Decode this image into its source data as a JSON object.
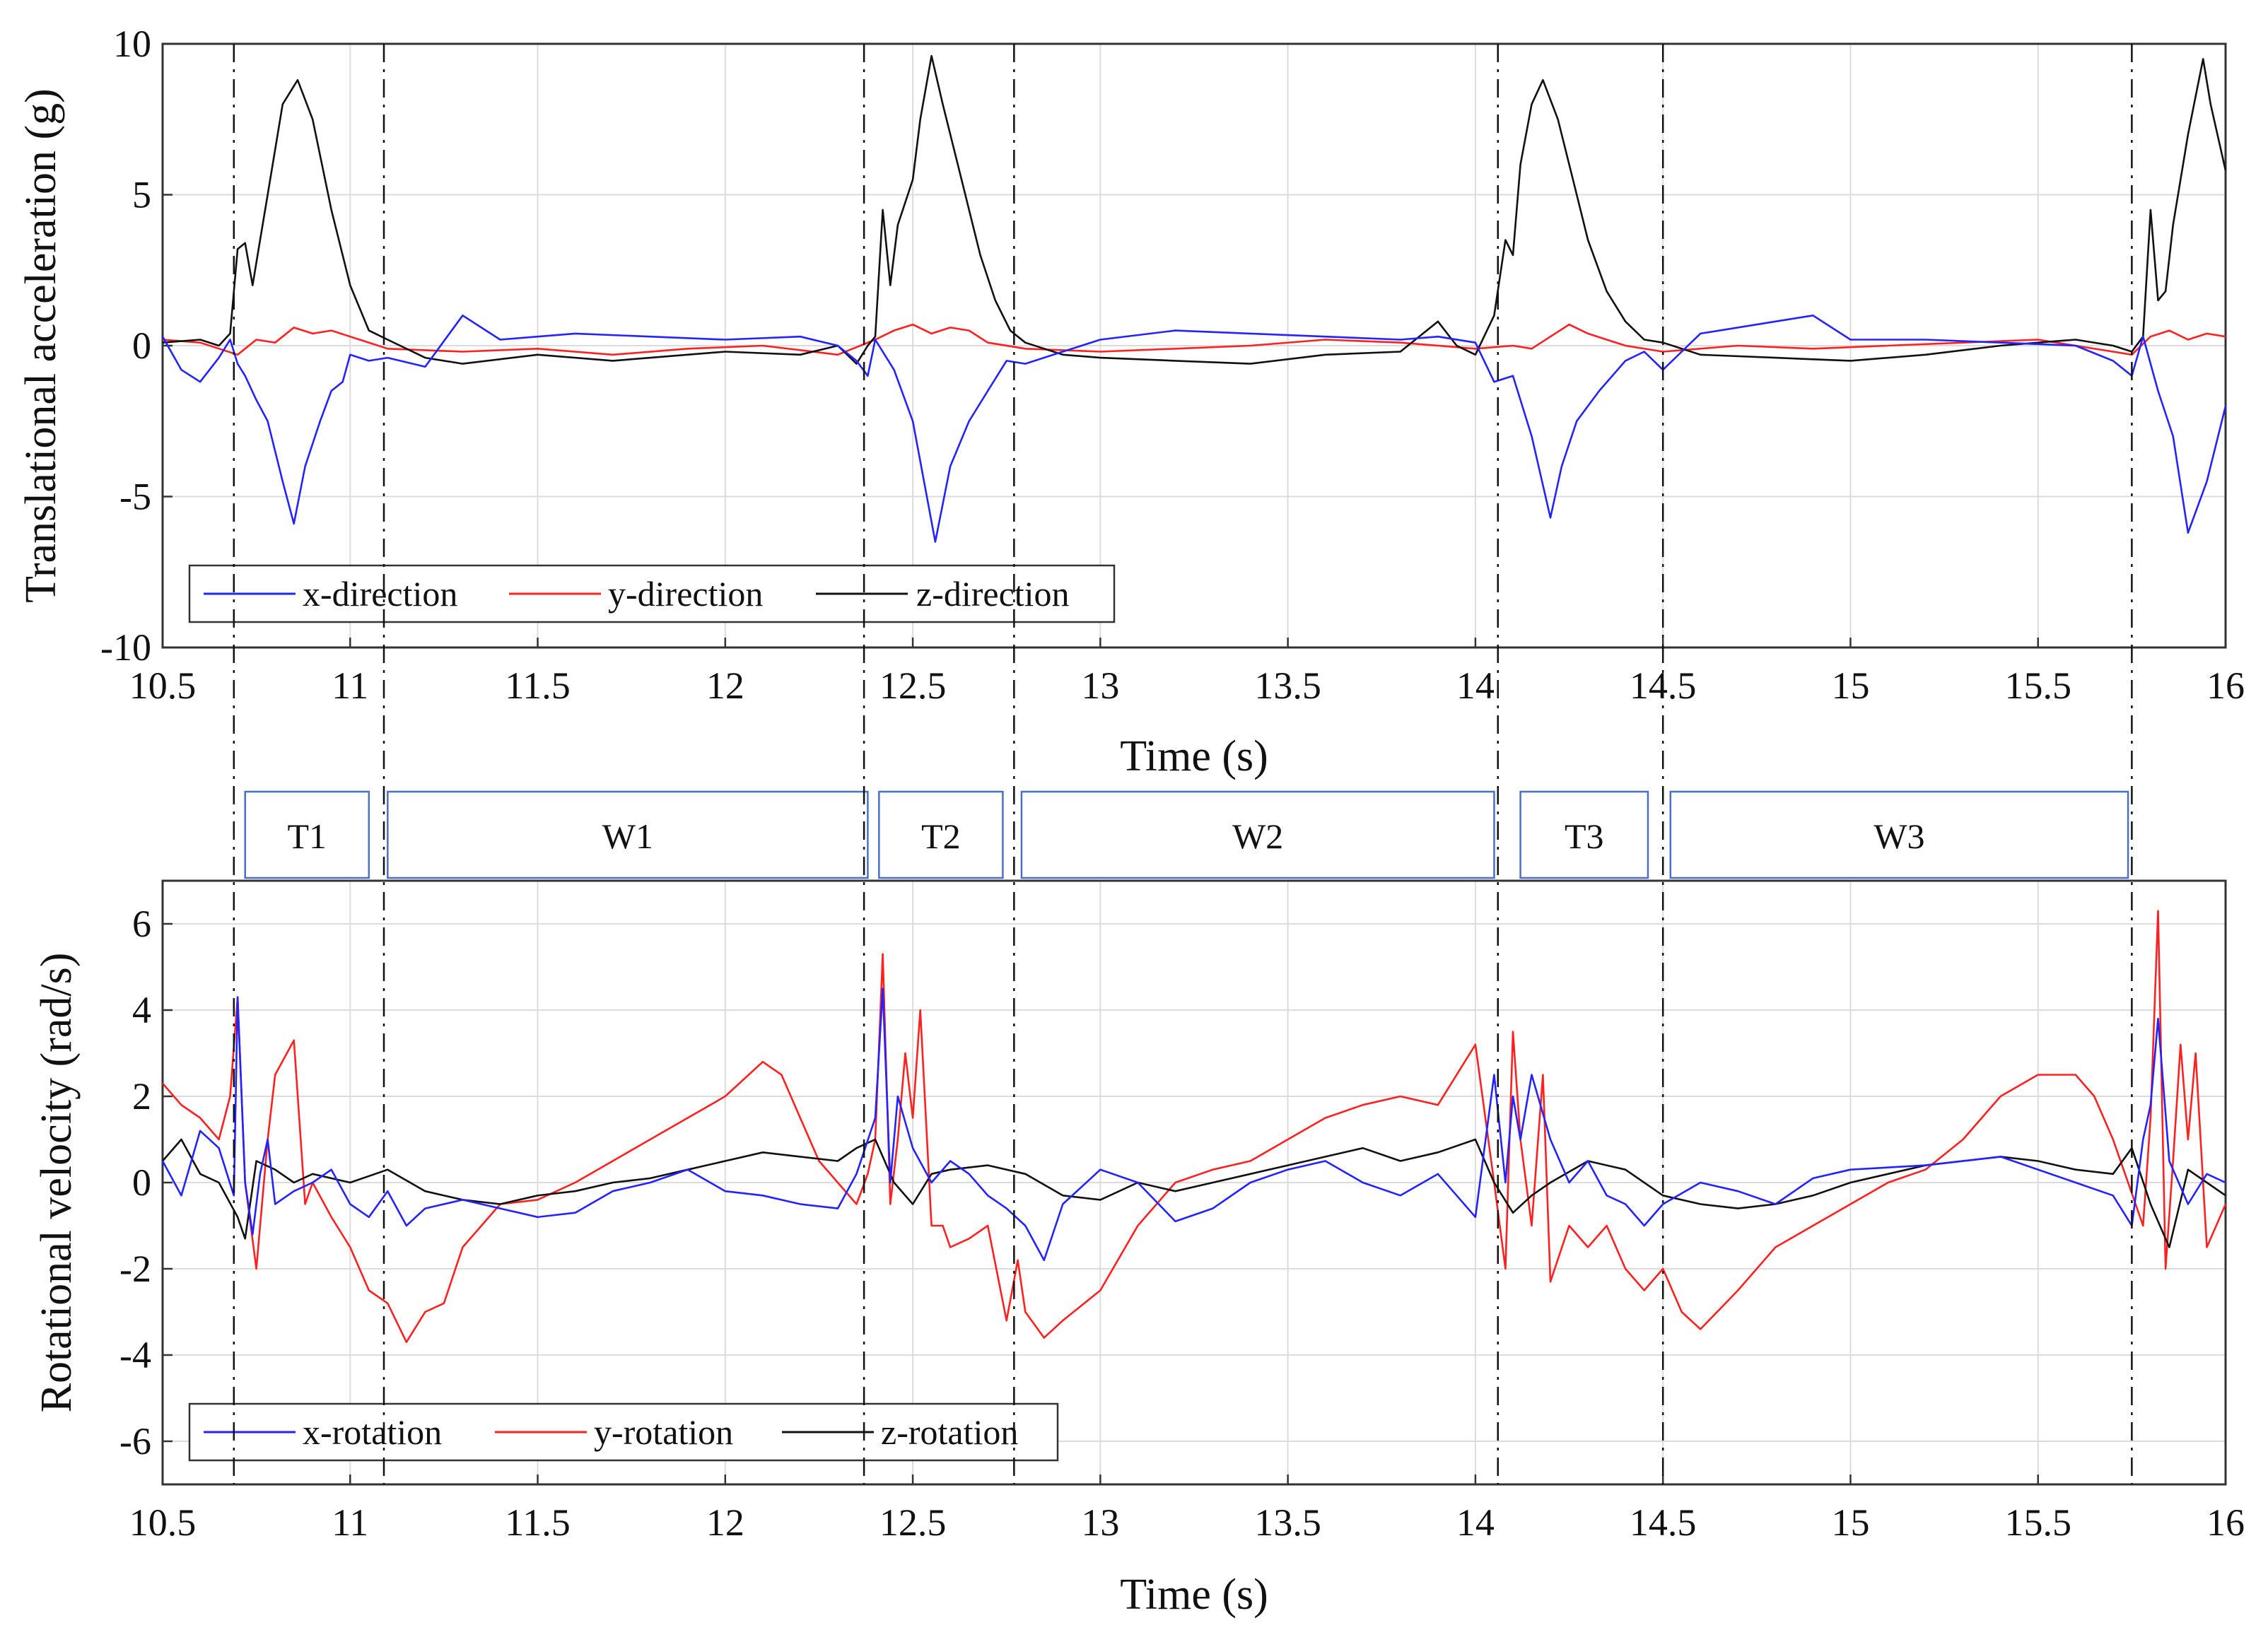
{
  "chart_data": [
    {
      "type": "line",
      "id": "top",
      "xlabel": "Time (s)",
      "ylabel": "Translational acceleration (g)",
      "xlim": [
        10.5,
        16
      ],
      "ylim": [
        -10,
        10
      ],
      "xticks": [
        "10.5",
        "11",
        "11.5",
        "12",
        "12.5",
        "13",
        "13.5",
        "14",
        "14.5",
        "15",
        "15.5",
        "16"
      ],
      "yticks": [
        "-10",
        "-5",
        "0",
        "5",
        "10"
      ],
      "grid": true,
      "legend_position": "bottom-left",
      "series": [
        {
          "name": "x-direction",
          "color": "#2323ff",
          "x": [
            10.5,
            10.55,
            10.6,
            10.65,
            10.68,
            10.7,
            10.72,
            10.75,
            10.78,
            10.82,
            10.85,
            10.88,
            10.92,
            10.95,
            10.98,
            11.0,
            11.05,
            11.1,
            11.2,
            11.3,
            11.4,
            11.5,
            11.6,
            11.8,
            12.0,
            12.2,
            12.3,
            12.35,
            12.38,
            12.4,
            12.45,
            12.5,
            12.53,
            12.56,
            12.6,
            12.65,
            12.7,
            12.75,
            12.8,
            12.9,
            13.0,
            13.2,
            13.4,
            13.6,
            13.8,
            13.9,
            14.0,
            14.05,
            14.1,
            14.15,
            14.2,
            14.23,
            14.27,
            14.33,
            14.4,
            14.45,
            14.5,
            14.55,
            14.6,
            14.8,
            14.9,
            15.0,
            15.2,
            15.4,
            15.6,
            15.7,
            15.75,
            15.78,
            15.82,
            15.86,
            15.9,
            15.95,
            16.0
          ],
          "values": [
            0.3,
            -0.8,
            -1.2,
            -0.4,
            0.2,
            -0.6,
            -1.0,
            -1.8,
            -2.5,
            -4.5,
            -5.9,
            -4.0,
            -2.5,
            -1.5,
            -1.2,
            -0.3,
            -0.5,
            -0.4,
            -0.7,
            1.0,
            0.2,
            0.3,
            0.4,
            0.3,
            0.2,
            0.3,
            0.0,
            -0.5,
            -1.0,
            0.2,
            -0.8,
            -2.5,
            -4.5,
            -6.5,
            -4.0,
            -2.5,
            -1.5,
            -0.5,
            -0.6,
            -0.2,
            0.2,
            0.5,
            0.4,
            0.3,
            0.2,
            0.3,
            0.1,
            -1.2,
            -1.0,
            -3.0,
            -5.7,
            -4.0,
            -2.5,
            -1.5,
            -0.5,
            -0.2,
            -0.8,
            -0.2,
            0.4,
            0.8,
            1.0,
            0.2,
            0.2,
            0.1,
            0.0,
            -0.5,
            -1.0,
            0.3,
            -1.5,
            -3.0,
            -6.2,
            -4.5,
            -2.0
          ]
        },
        {
          "name": "y-direction",
          "color": "#ff2020",
          "x": [
            10.5,
            10.6,
            10.7,
            10.75,
            10.8,
            10.85,
            10.9,
            10.95,
            11.0,
            11.1,
            11.3,
            11.5,
            11.7,
            11.9,
            12.1,
            12.3,
            12.4,
            12.45,
            12.5,
            12.55,
            12.6,
            12.65,
            12.7,
            12.8,
            13.0,
            13.2,
            13.4,
            13.6,
            13.8,
            14.0,
            14.1,
            14.15,
            14.2,
            14.25,
            14.3,
            14.35,
            14.4,
            14.5,
            14.7,
            14.9,
            15.1,
            15.3,
            15.5,
            15.7,
            15.75,
            15.8,
            15.85,
            15.9,
            15.95,
            16.0
          ],
          "values": [
            0.2,
            0.1,
            -0.3,
            0.2,
            0.1,
            0.6,
            0.4,
            0.5,
            0.3,
            -0.1,
            -0.2,
            -0.1,
            -0.3,
            -0.1,
            0.0,
            -0.3,
            0.2,
            0.5,
            0.7,
            0.4,
            0.6,
            0.5,
            0.1,
            -0.1,
            -0.2,
            -0.1,
            0.0,
            0.2,
            0.1,
            -0.1,
            0.0,
            -0.1,
            0.3,
            0.7,
            0.4,
            0.2,
            0.0,
            -0.2,
            0.0,
            -0.1,
            0.0,
            0.1,
            0.2,
            -0.2,
            -0.3,
            0.3,
            0.5,
            0.2,
            0.4,
            0.3
          ]
        },
        {
          "name": "z-direction",
          "color": "#111111",
          "x": [
            10.5,
            10.6,
            10.65,
            10.68,
            10.7,
            10.72,
            10.74,
            10.76,
            10.78,
            10.82,
            10.86,
            10.9,
            10.95,
            11.0,
            11.05,
            11.1,
            11.2,
            11.3,
            11.5,
            11.7,
            12.0,
            12.2,
            12.3,
            12.35,
            12.38,
            12.4,
            12.42,
            12.44,
            12.46,
            12.5,
            12.52,
            12.55,
            12.58,
            12.62,
            12.68,
            12.72,
            12.76,
            12.8,
            12.9,
            13.0,
            13.2,
            13.4,
            13.6,
            13.8,
            13.9,
            13.95,
            14.0,
            14.05,
            14.08,
            14.1,
            14.12,
            14.15,
            14.18,
            14.22,
            14.26,
            14.3,
            14.35,
            14.4,
            14.45,
            14.5,
            14.6,
            14.8,
            15.0,
            15.2,
            15.4,
            15.6,
            15.7,
            15.75,
            15.78,
            15.8,
            15.82,
            15.84,
            15.86,
            15.9,
            15.94,
            15.96,
            16.0
          ],
          "values": [
            0.1,
            0.2,
            0.0,
            0.4,
            3.2,
            3.4,
            2.0,
            3.5,
            5.0,
            8.0,
            8.8,
            7.5,
            4.5,
            2.0,
            0.5,
            0.2,
            -0.4,
            -0.6,
            -0.3,
            -0.5,
            -0.2,
            -0.3,
            0.0,
            -0.6,
            0.0,
            0.3,
            4.5,
            2.0,
            4.0,
            5.5,
            7.5,
            9.6,
            8.0,
            6.0,
            3.0,
            1.5,
            0.5,
            0.1,
            -0.3,
            -0.4,
            -0.5,
            -0.6,
            -0.3,
            -0.2,
            0.8,
            0.0,
            -0.3,
            1.0,
            3.5,
            3.0,
            6.0,
            8.0,
            8.8,
            7.5,
            5.5,
            3.5,
            1.8,
            0.8,
            0.2,
            0.1,
            -0.3,
            -0.4,
            -0.5,
            -0.3,
            0.0,
            0.2,
            0.0,
            -0.2,
            0.3,
            4.5,
            1.5,
            1.8,
            4.0,
            7.0,
            9.5,
            8.0,
            5.8
          ]
        }
      ]
    },
    {
      "type": "line",
      "id": "bottom",
      "xlabel": "Time (s)",
      "ylabel": "Rotational velocity (rad/s)",
      "xlim": [
        10.5,
        16
      ],
      "ylim": [
        -7,
        7
      ],
      "xticks": [
        "10.5",
        "11",
        "11.5",
        "12",
        "12.5",
        "13",
        "13.5",
        "14",
        "14.5",
        "15",
        "15.5",
        "16"
      ],
      "yticks": [
        "-6",
        "-4",
        "-2",
        "0",
        "2",
        "4",
        "6"
      ],
      "grid": true,
      "legend_position": "bottom-left",
      "series": [
        {
          "name": "x-rotation",
          "color": "#2323ff",
          "x": [
            10.5,
            10.55,
            10.6,
            10.65,
            10.69,
            10.7,
            10.72,
            10.74,
            10.76,
            10.78,
            10.8,
            10.85,
            10.9,
            10.95,
            11.0,
            11.05,
            11.1,
            11.15,
            11.2,
            11.3,
            11.4,
            11.5,
            11.6,
            11.7,
            11.8,
            11.9,
            12.0,
            12.1,
            12.2,
            12.3,
            12.35,
            12.4,
            12.42,
            12.44,
            12.46,
            12.5,
            12.55,
            12.6,
            12.65,
            12.7,
            12.75,
            12.8,
            12.85,
            12.9,
            13.0,
            13.1,
            13.2,
            13.3,
            13.4,
            13.5,
            13.6,
            13.7,
            13.8,
            13.9,
            14.0,
            14.05,
            14.08,
            14.1,
            14.12,
            14.15,
            14.2,
            14.25,
            14.3,
            14.35,
            14.4,
            14.45,
            14.5,
            14.6,
            14.7,
            14.8,
            14.9,
            15.0,
            15.2,
            15.4,
            15.6,
            15.7,
            15.75,
            15.78,
            15.8,
            15.82,
            15.85,
            15.9,
            15.95,
            16.0
          ],
          "values": [
            0.5,
            -0.3,
            1.2,
            0.8,
            -0.3,
            4.3,
            0.0,
            -1.2,
            0.2,
            1.0,
            -0.5,
            -0.2,
            0.0,
            0.3,
            -0.5,
            -0.8,
            -0.2,
            -1.0,
            -0.6,
            -0.4,
            -0.6,
            -0.8,
            -0.7,
            -0.2,
            0.0,
            0.3,
            -0.2,
            -0.3,
            -0.5,
            -0.6,
            0.2,
            1.5,
            4.5,
            0.0,
            2.0,
            0.8,
            0.0,
            0.5,
            0.2,
            -0.3,
            -0.6,
            -1.0,
            -1.8,
            -0.5,
            0.3,
            0.0,
            -0.9,
            -0.6,
            0.0,
            0.3,
            0.5,
            0.0,
            -0.3,
            0.2,
            -0.8,
            2.5,
            0.0,
            2.0,
            1.0,
            2.5,
            1.0,
            0.0,
            0.5,
            -0.3,
            -0.5,
            -1.0,
            -0.5,
            0.0,
            -0.2,
            -0.5,
            0.1,
            0.3,
            0.4,
            0.6,
            0.0,
            -0.3,
            -1.0,
            1.0,
            1.8,
            3.8,
            0.5,
            -0.5,
            0.2,
            0.0
          ]
        },
        {
          "name": "y-rotation",
          "color": "#ff2020",
          "x": [
            10.5,
            10.55,
            10.6,
            10.65,
            10.68,
            10.7,
            10.72,
            10.75,
            10.78,
            10.8,
            10.85,
            10.88,
            10.9,
            10.95,
            11.0,
            11.05,
            11.1,
            11.15,
            11.2,
            11.25,
            11.3,
            11.35,
            11.4,
            11.5,
            11.6,
            11.7,
            11.8,
            11.9,
            12.0,
            12.1,
            12.15,
            12.2,
            12.25,
            12.3,
            12.35,
            12.38,
            12.4,
            12.42,
            12.44,
            12.46,
            12.48,
            12.5,
            12.52,
            12.55,
            12.58,
            12.6,
            12.65,
            12.7,
            12.75,
            12.78,
            12.8,
            12.85,
            12.9,
            13.0,
            13.1,
            13.2,
            13.3,
            13.4,
            13.5,
            13.6,
            13.7,
            13.8,
            13.9,
            14.0,
            14.05,
            14.08,
            14.1,
            14.12,
            14.15,
            14.18,
            14.2,
            14.25,
            14.3,
            14.35,
            14.4,
            14.45,
            14.5,
            14.55,
            14.6,
            14.7,
            14.8,
            14.9,
            15.0,
            15.1,
            15.2,
            15.3,
            15.4,
            15.5,
            15.6,
            15.65,
            15.7,
            15.74,
            15.78,
            15.8,
            15.82,
            15.84,
            15.86,
            15.88,
            15.9,
            15.92,
            15.95,
            16.0
          ],
          "values": [
            2.3,
            1.8,
            1.5,
            1.0,
            2.0,
            4.3,
            0.0,
            -2.0,
            1.0,
            2.5,
            3.3,
            -0.5,
            0.0,
            -0.8,
            -1.5,
            -2.5,
            -2.8,
            -3.7,
            -3.0,
            -2.8,
            -1.5,
            -1.0,
            -0.5,
            -0.4,
            0.0,
            0.5,
            1.0,
            1.5,
            2.0,
            2.8,
            2.5,
            1.5,
            0.5,
            0.0,
            -0.5,
            0.2,
            1.0,
            5.3,
            -0.5,
            1.0,
            3.0,
            1.5,
            4.0,
            -1.0,
            -1.0,
            -1.5,
            -1.3,
            -1.0,
            -3.2,
            -1.8,
            -3.0,
            -3.6,
            -3.2,
            -2.5,
            -1.0,
            0.0,
            0.3,
            0.5,
            1.0,
            1.5,
            1.8,
            2.0,
            1.8,
            3.2,
            0.0,
            -2.0,
            3.5,
            1.0,
            -1.0,
            2.5,
            -2.3,
            -1.0,
            -1.5,
            -1.0,
            -2.0,
            -2.5,
            -2.0,
            -3.0,
            -3.4,
            -2.5,
            -1.5,
            -1.0,
            -0.5,
            0.0,
            0.3,
            1.0,
            2.0,
            2.5,
            2.5,
            2.0,
            1.0,
            0.0,
            -1.0,
            1.5,
            6.3,
            -2.0,
            0.5,
            3.2,
            1.0,
            3.0,
            -1.5,
            -0.5
          ]
        },
        {
          "name": "z-rotation",
          "color": "#111111",
          "x": [
            10.5,
            10.55,
            10.6,
            10.65,
            10.7,
            10.72,
            10.75,
            10.8,
            10.85,
            10.9,
            11.0,
            11.1,
            11.2,
            11.3,
            11.4,
            11.5,
            11.6,
            11.7,
            11.8,
            11.9,
            12.0,
            12.1,
            12.2,
            12.3,
            12.35,
            12.4,
            12.45,
            12.5,
            12.55,
            12.6,
            12.7,
            12.8,
            12.9,
            13.0,
            13.1,
            13.2,
            13.3,
            13.4,
            13.5,
            13.6,
            13.7,
            13.8,
            13.9,
            14.0,
            14.05,
            14.1,
            14.15,
            14.2,
            14.3,
            14.4,
            14.5,
            14.6,
            14.7,
            14.8,
            14.9,
            15.0,
            15.1,
            15.2,
            15.3,
            15.4,
            15.5,
            15.6,
            15.7,
            15.75,
            15.8,
            15.85,
            15.9,
            15.95,
            16.0
          ],
          "values": [
            0.5,
            1.0,
            0.2,
            0.0,
            -0.8,
            -1.3,
            0.5,
            0.3,
            0.0,
            0.2,
            0.0,
            0.3,
            -0.2,
            -0.4,
            -0.5,
            -0.3,
            -0.2,
            0.0,
            0.1,
            0.3,
            0.5,
            0.7,
            0.6,
            0.5,
            0.8,
            1.0,
            0.0,
            -0.5,
            0.2,
            0.3,
            0.4,
            0.2,
            -0.3,
            -0.4,
            0.0,
            -0.2,
            0.0,
            0.2,
            0.4,
            0.6,
            0.8,
            0.5,
            0.7,
            1.0,
            0.0,
            -0.7,
            -0.3,
            0.0,
            0.5,
            0.3,
            -0.3,
            -0.5,
            -0.6,
            -0.5,
            -0.3,
            0.0,
            0.2,
            0.4,
            0.5,
            0.6,
            0.5,
            0.3,
            0.2,
            0.8,
            -0.5,
            -1.5,
            0.3,
            0.0,
            -0.3
          ]
        }
      ]
    }
  ],
  "event_lines": [
    10.69,
    11.09,
    12.37,
    12.77,
    14.06,
    14.5,
    15.75
  ],
  "phases": [
    {
      "label": "T1",
      "x0": 10.72,
      "x1": 11.05
    },
    {
      "label": "W1",
      "x0": 11.1,
      "x1": 12.38
    },
    {
      "label": "T2",
      "x0": 12.41,
      "x1": 12.74
    },
    {
      "label": "W2",
      "x0": 12.79,
      "x1": 14.05
    },
    {
      "label": "T3",
      "x0": 14.12,
      "x1": 14.46
    },
    {
      "label": "W3",
      "x0": 14.52,
      "x1": 15.74
    }
  ]
}
